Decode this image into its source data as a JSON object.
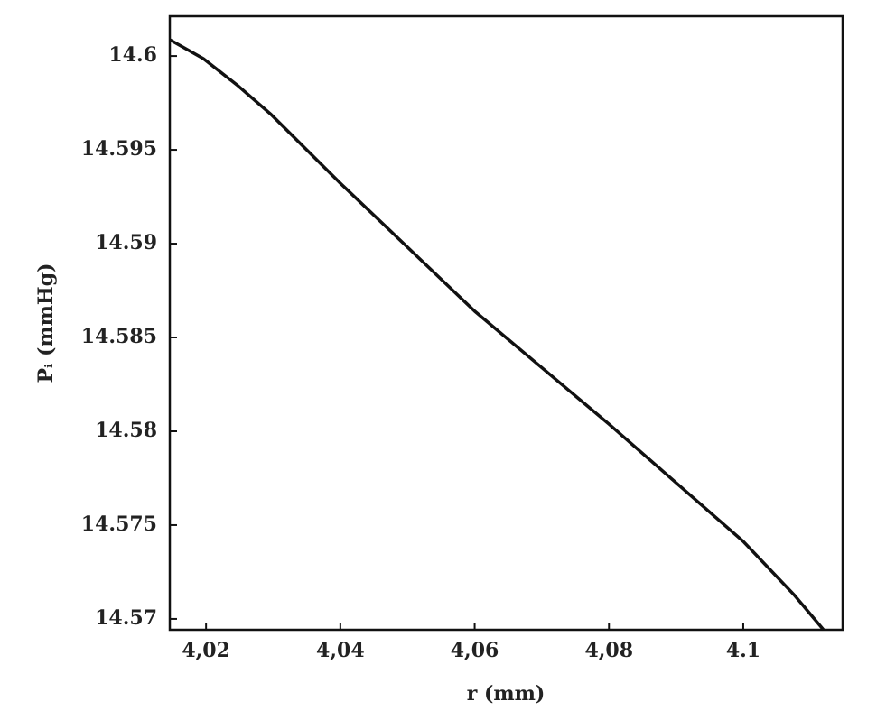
{
  "chart_data": {
    "type": "line",
    "x_label": "r (mm)",
    "y_label": "Pᵢ (mmHg)",
    "x": [
      4.0146,
      4.0196,
      4.0246,
      4.0297,
      4.04,
      4.06,
      4.08,
      4.1,
      4.10765,
      4.11195
    ],
    "series": [
      {
        "name": "Pi",
        "color": "#111111",
        "values": [
          14.60087,
          14.59986,
          14.59846,
          14.59688,
          14.59322,
          14.5864,
          14.58038,
          14.57413,
          14.57125,
          14.56942
        ]
      }
    ],
    "xlim": [
      4.0146,
      4.1148
    ],
    "ylim": [
      14.56942,
      14.60212
    ],
    "xticks": [
      {
        "value": 4.02,
        "label": "4,02"
      },
      {
        "value": 4.04,
        "label": "4,04"
      },
      {
        "value": 4.06,
        "label": "4,06"
      },
      {
        "value": 4.08,
        "label": "4,08"
      },
      4.1
    ],
    "yticks": [
      14.57,
      14.575,
      14.58,
      14.585,
      14.59,
      14.595,
      14.6
    ],
    "grid": false
  }
}
